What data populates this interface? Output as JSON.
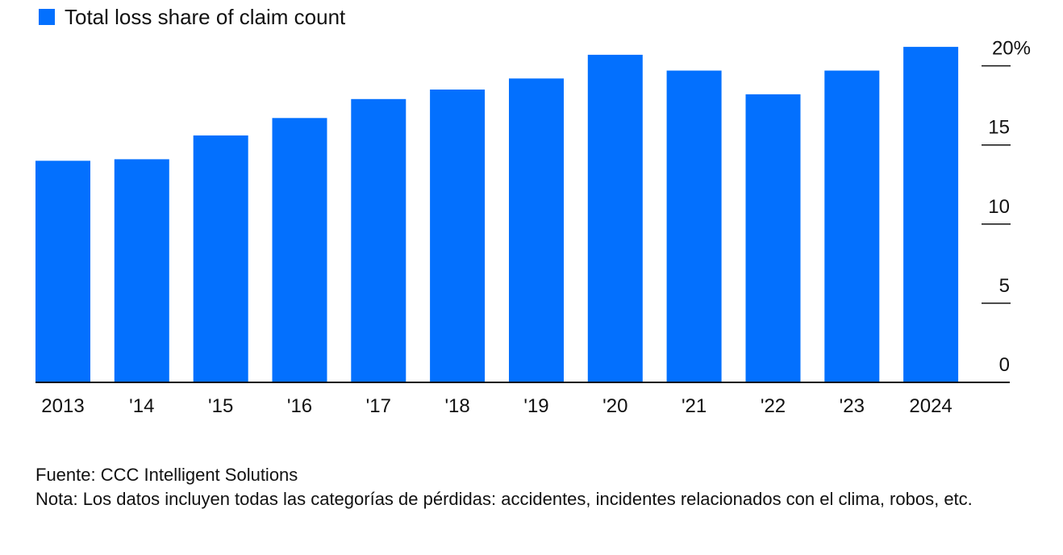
{
  "legend": {
    "label": "Total loss share of claim count",
    "color": "#0370fe"
  },
  "chart_data": {
    "type": "bar",
    "categories": [
      "2013",
      "'14",
      "'15",
      "'16",
      "'17",
      "'18",
      "'19",
      "'20",
      "'21",
      "'22",
      "'23",
      "2024"
    ],
    "series": [
      {
        "name": "Total loss share of claim count",
        "values": [
          14.0,
          14.1,
          15.6,
          16.7,
          17.9,
          18.5,
          19.2,
          20.7,
          19.7,
          18.2,
          19.7,
          21.2
        ]
      }
    ],
    "y_ticks": [
      0,
      5,
      10,
      15,
      20
    ],
    "y_tick_labels": [
      "0",
      "5",
      "10",
      "15",
      "20%"
    ],
    "ylim": [
      0,
      20
    ],
    "y_axis_position": "right",
    "grid": false,
    "legend_position": "top-left",
    "bar_color": "#0370fe"
  },
  "footer": {
    "source": "Fuente: CCC Intelligent Solutions",
    "note": "Nota: Los datos incluyen todas las categorías de pérdidas: accidentes, incidentes relacionados con el clima, robos, etc."
  }
}
